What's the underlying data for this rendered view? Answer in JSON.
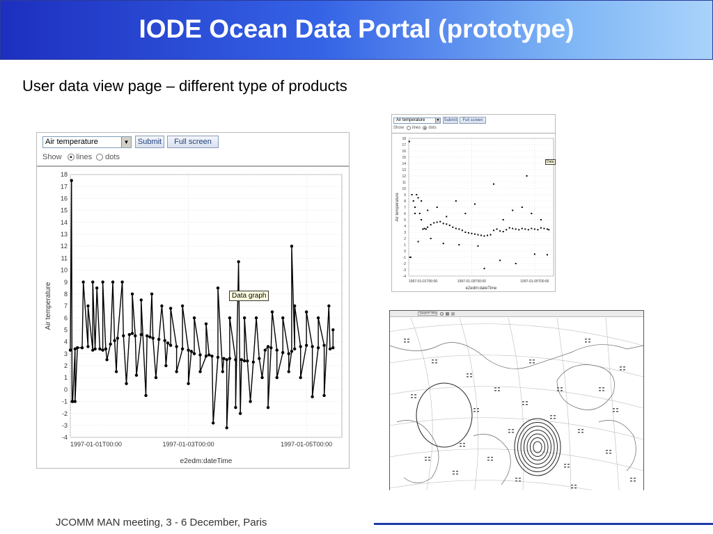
{
  "slide": {
    "title": "IODE Ocean Data Portal (prototype)",
    "subtitle": "User data view page – different type of products",
    "footer": "JCOMM MAN meeting, 3 - 6 December, Paris"
  },
  "controls": {
    "parameter_select": "Air temperature",
    "submit_label": "Submit",
    "fullscreen_label": "Full screen",
    "show_label": "Show",
    "lines_label": "lines",
    "dots_label": "dots",
    "tooltip": "Data graph",
    "small_tooltip": "Data"
  },
  "map_toolbar": {
    "search_label": "Search this"
  },
  "colors": {
    "banner_start": "#1d2fbf",
    "banner_end": "#a9d3fb",
    "footer_line": "#1e3aa8",
    "button_text": "#1f3f7f"
  },
  "chart_data": [
    {
      "type": "line",
      "mode": "lines",
      "title": "",
      "xlabel": "e2edm:dateTime",
      "ylabel": "Air temperature",
      "ylim": [
        -4,
        18
      ],
      "yticks": [
        -4,
        -3,
        -2,
        -1,
        0,
        1,
        2,
        3,
        4,
        5,
        6,
        7,
        8,
        9,
        10,
        11,
        12,
        13,
        14,
        15,
        16,
        17,
        18
      ],
      "xlim": [
        0,
        4.6
      ],
      "xtick_positions": [
        0,
        2,
        4
      ],
      "xticks": [
        "1997-01-01T00:00",
        "1997-01-03T00:00",
        "1997-01-05T00:00"
      ],
      "grid": true,
      "series": [
        {
          "x": [
            0,
            0.04,
            0.08,
            0.12,
            0.2,
            0.3,
            0.38,
            0.42,
            0.5,
            0.55,
            0.6,
            0.68,
            0.75,
            0.8,
            0.9,
            1.0,
            1.05,
            1.1,
            1.2,
            1.3,
            1.35,
            1.4,
            1.5,
            1.6,
            1.65,
            1.7,
            1.8,
            1.9,
            2.0,
            2.05,
            2.1,
            2.2,
            2.3,
            2.35,
            2.4,
            2.5,
            2.6,
            2.65,
            2.7,
            2.8,
            2.9,
            2.95,
            3.0,
            3.1,
            3.2,
            3.3,
            3.35,
            3.4,
            3.5,
            3.6,
            3.7,
            3.75,
            3.8,
            3.9,
            4.0,
            4.1,
            4.2,
            4.3,
            4.4,
            4.45
          ],
          "y": [
            3.3,
            -1,
            3.4,
            3.5,
            3.5,
            3.6,
            3.3,
            3.4,
            3.4,
            3.3,
            3.4,
            3.8,
            4.1,
            4.3,
            4.5,
            4.6,
            4.7,
            4.5,
            4.6,
            4.5,
            4.4,
            4.3,
            4.2,
            4.1,
            3.9,
            3.7,
            3.6,
            3.4,
            3.3,
            3.2,
            3.0,
            2.9,
            2.8,
            2.9,
            2.8,
            2.7,
            2.6,
            2.5,
            2.6,
            2.5,
            2.5,
            2.4,
            2.4,
            2.3,
            2.6,
            3.3,
            3.6,
            3.5,
            3.3,
            3.1,
            3.0,
            3.2,
            3.4,
            3.6,
            3.7,
            3.6,
            3.5,
            3.7,
            3.4,
            3.5
          ]
        }
      ],
      "spikes": [
        {
          "x": 0.02,
          "y": 17.5
        },
        {
          "x": 0.03,
          "y": -1
        },
        {
          "x": 0.08,
          "y": -1
        },
        {
          "x": 0.22,
          "y": 9
        },
        {
          "x": 0.3,
          "y": 7
        },
        {
          "x": 0.38,
          "y": 9
        },
        {
          "x": 0.45,
          "y": 8.5
        },
        {
          "x": 0.55,
          "y": 9
        },
        {
          "x": 0.62,
          "y": 2.5
        },
        {
          "x": 0.72,
          "y": 9
        },
        {
          "x": 0.78,
          "y": 1.5
        },
        {
          "x": 0.88,
          "y": 9
        },
        {
          "x": 0.95,
          "y": 0.5
        },
        {
          "x": 1.05,
          "y": 8
        },
        {
          "x": 1.12,
          "y": 1.2
        },
        {
          "x": 1.2,
          "y": 7.5
        },
        {
          "x": 1.28,
          "y": -0.5
        },
        {
          "x": 1.38,
          "y": 8
        },
        {
          "x": 1.45,
          "y": 1
        },
        {
          "x": 1.55,
          "y": 7
        },
        {
          "x": 1.62,
          "y": 2
        },
        {
          "x": 1.7,
          "y": 6.8
        },
        {
          "x": 1.8,
          "y": 1.5
        },
        {
          "x": 1.9,
          "y": 7
        },
        {
          "x": 2.0,
          "y": 0.5
        },
        {
          "x": 2.1,
          "y": 6
        },
        {
          "x": 2.2,
          "y": 1.5
        },
        {
          "x": 2.3,
          "y": 5.5
        },
        {
          "x": 2.42,
          "y": -2.8
        },
        {
          "x": 2.5,
          "y": 8.5
        },
        {
          "x": 2.58,
          "y": 1.5
        },
        {
          "x": 2.65,
          "y": -3.2
        },
        {
          "x": 2.7,
          "y": 6
        },
        {
          "x": 2.8,
          "y": -1.5
        },
        {
          "x": 2.85,
          "y": 10.7
        },
        {
          "x": 2.88,
          "y": -2
        },
        {
          "x": 2.95,
          "y": 6
        },
        {
          "x": 3.05,
          "y": -1
        },
        {
          "x": 3.15,
          "y": 6
        },
        {
          "x": 3.25,
          "y": 1
        },
        {
          "x": 3.35,
          "y": -1.5
        },
        {
          "x": 3.42,
          "y": 6.5
        },
        {
          "x": 3.5,
          "y": 1
        },
        {
          "x": 3.6,
          "y": 6
        },
        {
          "x": 3.7,
          "y": 1.5
        },
        {
          "x": 3.75,
          "y": 12
        },
        {
          "x": 3.8,
          "y": 7
        },
        {
          "x": 3.9,
          "y": 1
        },
        {
          "x": 4.0,
          "y": 6.5
        },
        {
          "x": 4.1,
          "y": -0.6
        },
        {
          "x": 4.2,
          "y": 6
        },
        {
          "x": 4.3,
          "y": -0.5
        },
        {
          "x": 4.38,
          "y": 7
        },
        {
          "x": 4.45,
          "y": 5
        }
      ]
    },
    {
      "type": "scatter",
      "mode": "dots",
      "title": "",
      "xlabel": "e2edm:dateTime",
      "ylabel": "Air temperature",
      "ylim": [
        -4,
        18
      ],
      "yticks": [
        -4,
        -3,
        -2,
        -1,
        0,
        1,
        2,
        3,
        4,
        5,
        6,
        7,
        8,
        9,
        10,
        11,
        12,
        13,
        14,
        15,
        16,
        17,
        18
      ],
      "xlim": [
        0,
        4.6
      ],
      "xtick_positions": [
        0,
        2,
        4
      ],
      "xticks": [
        "1997-01-01T00:00",
        "1997-01-03T00:00",
        "1997-01-05T00:00"
      ],
      "grid": true,
      "series": [
        {
          "x": [
            0.02,
            0.04,
            0.06,
            0.1,
            0.15,
            0.2,
            0.25,
            0.3,
            0.35,
            0.4,
            0.45,
            0.5,
            0.55,
            0.6,
            0.7,
            0.8,
            0.9,
            1.0,
            1.1,
            1.2,
            1.3,
            1.4,
            1.5,
            1.6,
            1.7,
            1.8,
            1.9,
            2.0,
            2.1,
            2.2,
            2.3,
            2.4,
            2.5,
            2.6,
            2.7,
            2.8,
            2.9,
            3.0,
            3.1,
            3.2,
            3.3,
            3.4,
            3.5,
            3.6,
            3.7,
            3.75,
            3.8,
            3.9,
            4.0,
            4.1,
            4.2,
            4.3,
            4.4,
            4.45,
            0.2,
            0.4,
            0.6,
            0.9,
            1.2,
            1.5,
            1.8,
            2.1,
            2.4,
            2.7,
            3.0,
            3.3,
            3.6,
            3.9,
            4.2,
            0.3,
            0.7,
            1.1,
            1.6,
            2.2,
            2.9,
            3.4,
            4.0,
            4.4
          ],
          "y": [
            17.5,
            -1,
            -1,
            9,
            8,
            7,
            9,
            8.5,
            6,
            5,
            3.5,
            3.6,
            3.5,
            3.8,
            4.2,
            4.5,
            4.6,
            4.7,
            4.4,
            4.3,
            4.1,
            3.8,
            3.6,
            3.5,
            3.3,
            3.0,
            2.9,
            2.8,
            2.7,
            2.6,
            2.5,
            2.4,
            2.5,
            2.6,
            3.3,
            3.5,
            3.2,
            3.1,
            3.4,
            3.7,
            3.6,
            3.5,
            3.4,
            3.6,
            3.5,
            12,
            3.4,
            3.6,
            3.5,
            3.4,
            3.7,
            3.6,
            3.5,
            3.4,
            6,
            8,
            6.5,
            7,
            5.5,
            8,
            6,
            7.5,
            -2.8,
            10.7,
            5,
            6.5,
            7,
            6,
            5,
            1.5,
            2,
            1.2,
            1,
            0.8,
            -1.5,
            -2,
            -0.5,
            -0.6
          ]
        }
      ]
    }
  ]
}
